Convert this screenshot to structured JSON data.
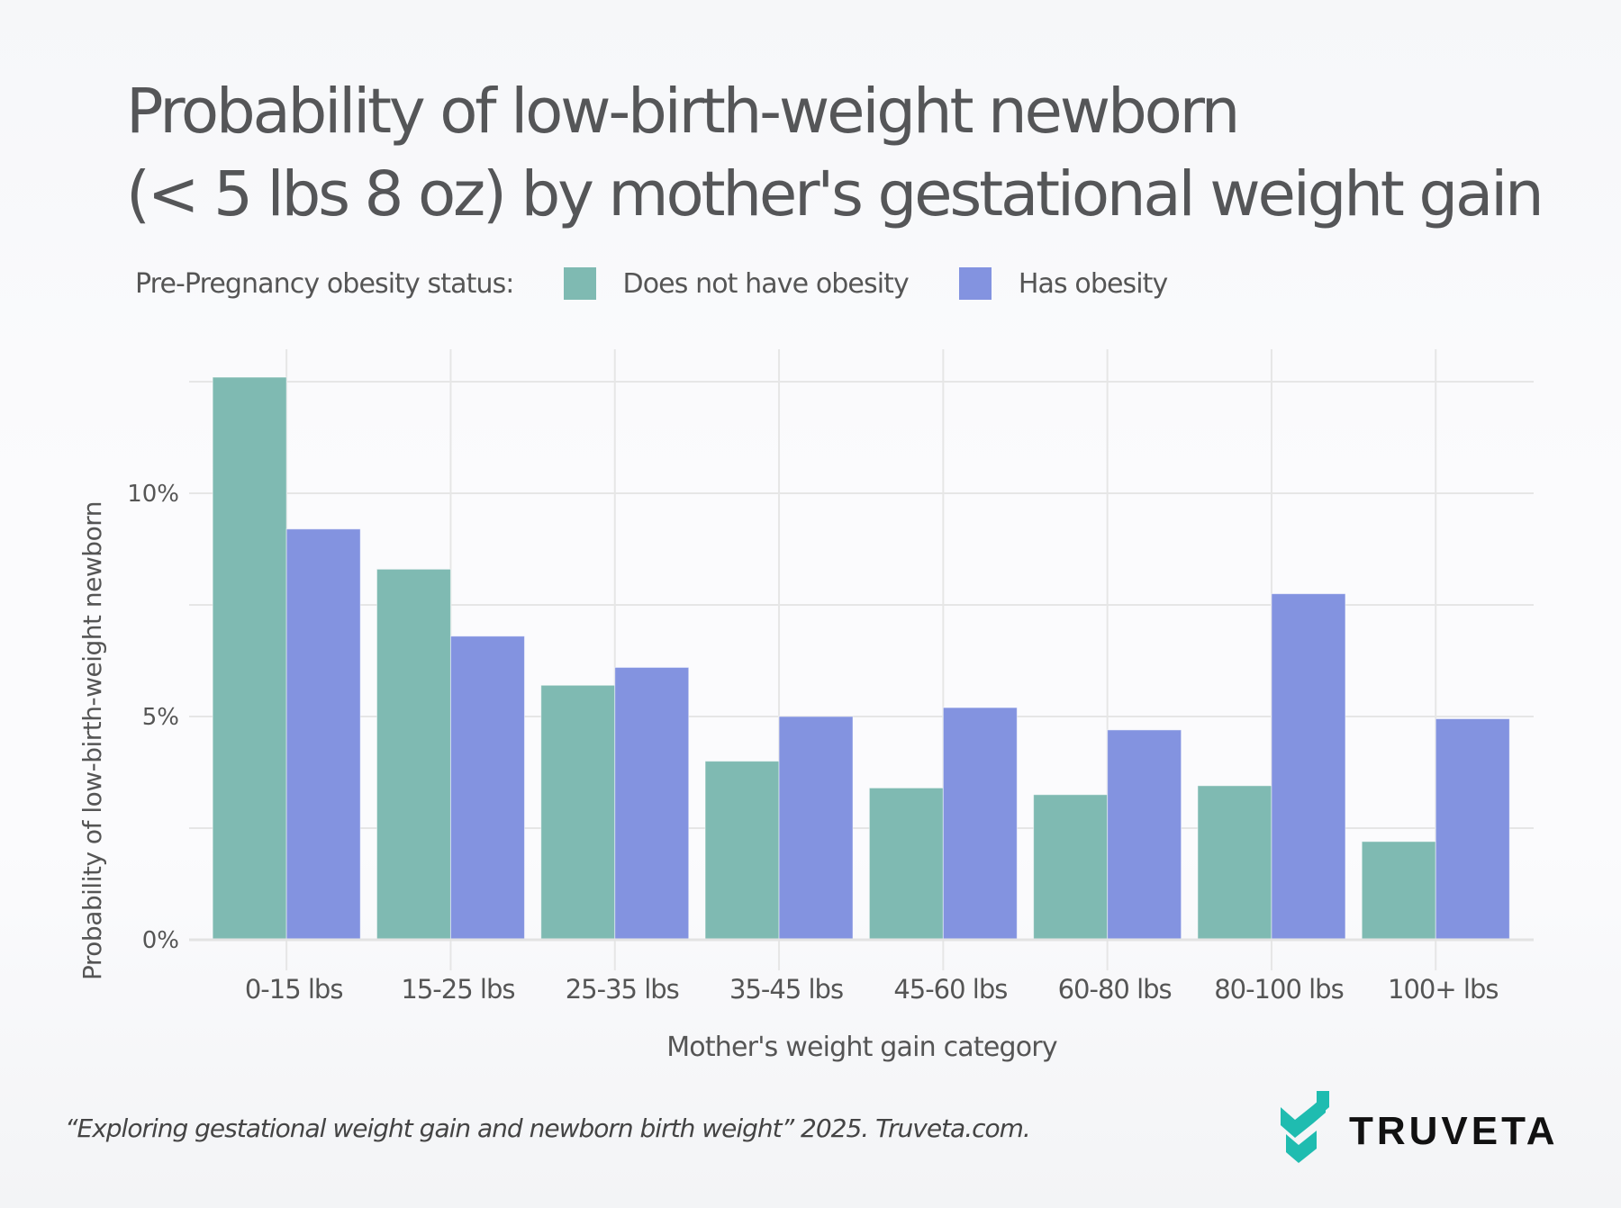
{
  "title": {
    "line1": "Probability of low-birth-weight newborn",
    "line2": "(< 5 lbs 8 oz) by mother's gestational weight gain"
  },
  "legend": {
    "label": "Pre-Pregnancy obesity status:",
    "items": [
      {
        "name": "Does not have obesity",
        "color": "#7fbab2"
      },
      {
        "name": "Has obesity",
        "color": "#8393e0"
      }
    ]
  },
  "footer": {
    "citation": "“Exploring gestational weight gain and newborn birth weight” 2025. Truveta.com.",
    "logo_text": "TRUVETA",
    "logo_color": "#1fbcb0"
  },
  "chart_data": {
    "type": "bar",
    "title": "Probability of low-birth-weight newborn (< 5 lbs 8 oz) by mother's gestational weight gain",
    "xlabel": "Mother's weight gain category",
    "ylabel": "Probability of low-birth-weight newborn",
    "categories": [
      "0-15 lbs",
      "15-25 lbs",
      "25-35 lbs",
      "35-45 lbs",
      "45-60 lbs",
      "60-80 lbs",
      "80-100 lbs",
      "100+ lbs"
    ],
    "series": [
      {
        "name": "Does not have obesity",
        "color": "#7fbab2",
        "values": [
          12.6,
          8.3,
          5.7,
          4.0,
          3.4,
          3.25,
          3.45,
          2.2
        ]
      },
      {
        "name": "Has obesity",
        "color": "#8393e0",
        "values": [
          9.2,
          6.8,
          6.1,
          5.0,
          5.2,
          4.7,
          7.75,
          4.95
        ]
      }
    ],
    "yticks": [
      {
        "value": 0,
        "label": "0%"
      },
      {
        "value": 5,
        "label": "5%"
      },
      {
        "value": 10,
        "label": "10%"
      }
    ],
    "minor_gridlines": [
      2.5,
      7.5,
      12.5
    ],
    "ylim": [
      0,
      13.1
    ],
    "grid": true,
    "legend_position": "top"
  }
}
